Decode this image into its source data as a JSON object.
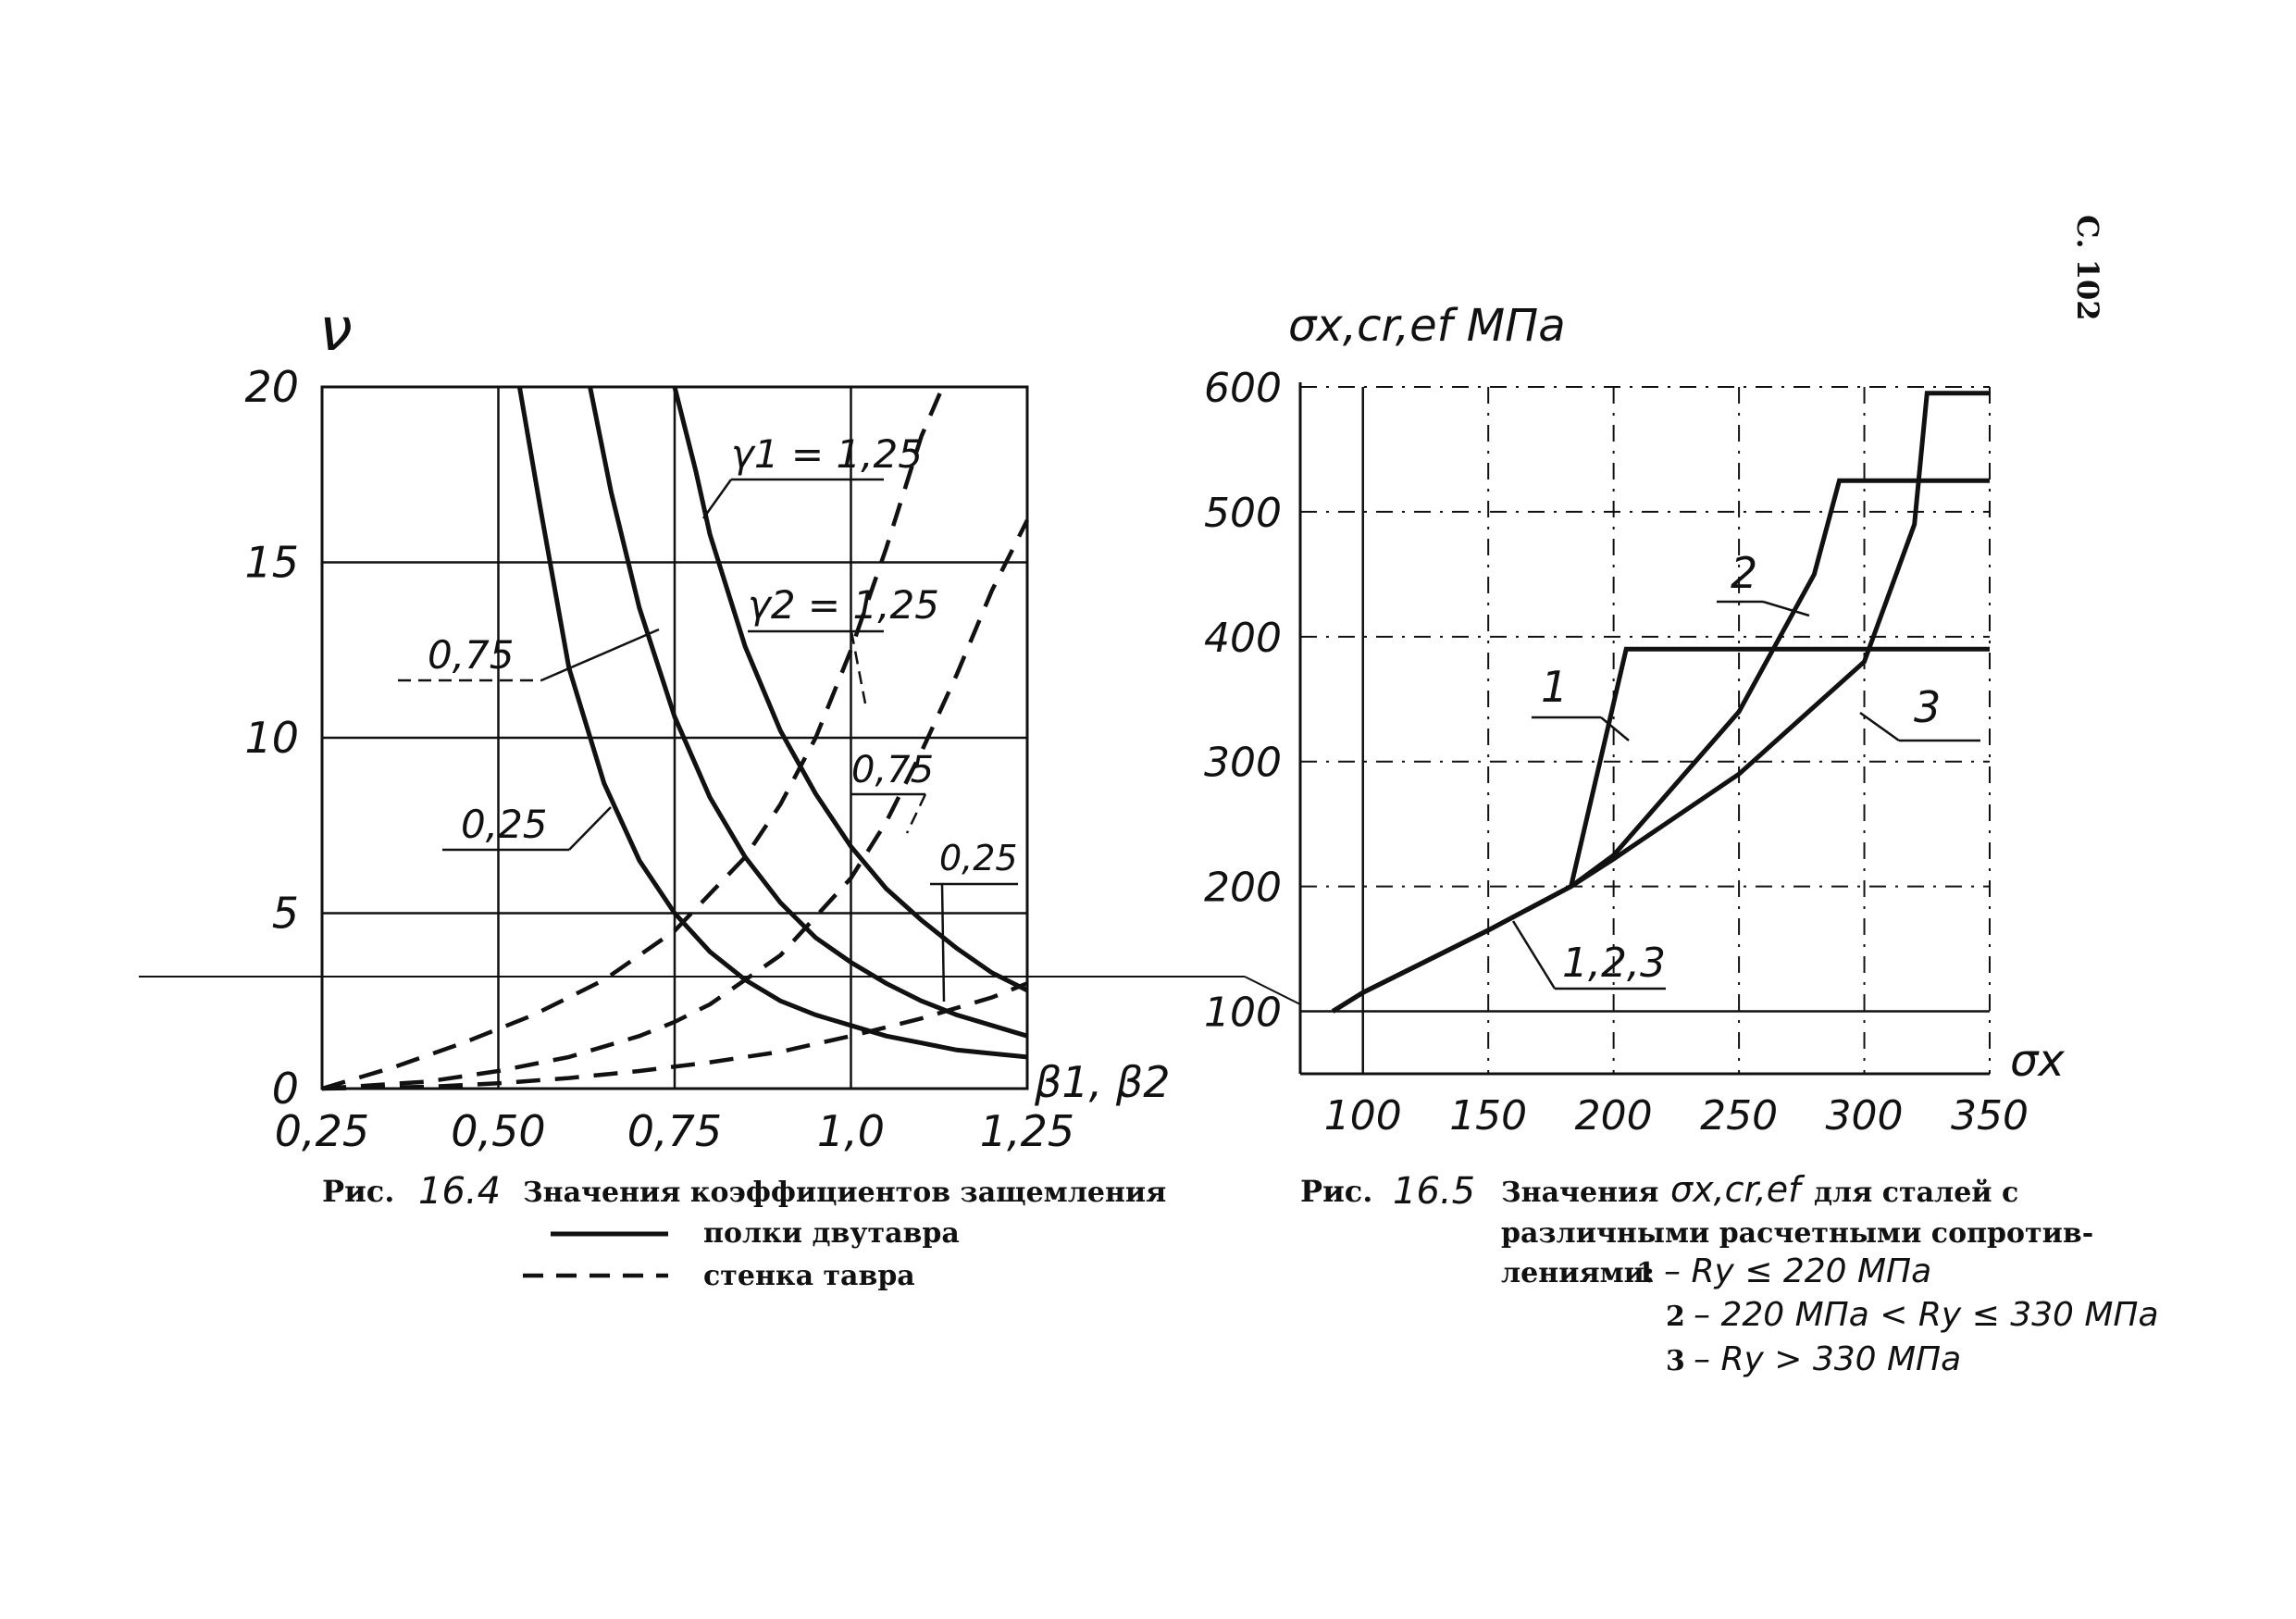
{
  "page_mark": "С. 102",
  "chart_data": [
    {
      "type": "line",
      "id": "fig_16_4",
      "ylabel": "ν",
      "xlabel": "β1, β2",
      "xlim": [
        0.25,
        1.25
      ],
      "ylim": [
        0,
        20
      ],
      "x_ticks": [
        0.25,
        0.5,
        0.75,
        1.0,
        1.25
      ],
      "x_tick_labels": [
        "0,25",
        "0,50",
        "0,75",
        "1,0",
        "1,25"
      ],
      "y_ticks": [
        0,
        5,
        10,
        15,
        20
      ],
      "y_tick_labels": [
        "0",
        "5",
        "10",
        "15",
        "20"
      ],
      "grid": true,
      "caption": {
        "prefix": "Рис.",
        "number": "16.4",
        "title": "Значения коэффициентов защемления",
        "legend": [
          {
            "style": "solid",
            "label": "полки двутавра"
          },
          {
            "style": "dashed",
            "label": "стенка тавра"
          }
        ]
      },
      "annotations": {
        "solid_g1": "γ1 = 1,25",
        "solid_075": "0,75",
        "solid_025": "0,25",
        "dash_g2": "γ2 = 1,25",
        "dash_075": "0,75",
        "dash_025": "0,25"
      },
      "series": [
        {
          "style": "solid",
          "label": "0,25",
          "x": [
            0.53,
            0.56,
            0.6,
            0.65,
            0.7,
            0.75,
            0.8,
            0.85,
            0.9,
            0.95,
            1.0,
            1.05,
            1.1,
            1.15,
            1.2,
            1.25
          ],
          "y": [
            20,
            16.5,
            12.0,
            8.7,
            6.5,
            5.0,
            3.9,
            3.1,
            2.5,
            2.1,
            1.8,
            1.5,
            1.3,
            1.1,
            1.0,
            0.9
          ]
        },
        {
          "style": "solid",
          "label": "0,75",
          "x": [
            0.63,
            0.66,
            0.7,
            0.75,
            0.8,
            0.85,
            0.9,
            0.95,
            1.0,
            1.05,
            1.1,
            1.15,
            1.2,
            1.25
          ],
          "y": [
            20,
            17.0,
            13.7,
            10.6,
            8.3,
            6.6,
            5.3,
            4.3,
            3.6,
            3.0,
            2.5,
            2.1,
            1.8,
            1.5
          ]
        },
        {
          "style": "solid",
          "label": "γ1 = 1,25",
          "x": [
            0.75,
            0.78,
            0.8,
            0.85,
            0.9,
            0.95,
            1.0,
            1.05,
            1.1,
            1.15,
            1.2,
            1.25
          ],
          "y": [
            20,
            17.6,
            15.8,
            12.6,
            10.2,
            8.4,
            6.9,
            5.7,
            4.8,
            4.0,
            3.3,
            2.8
          ]
        },
        {
          "style": "dashed",
          "label": "0,25",
          "x": [
            0.25,
            0.4,
            0.5,
            0.6,
            0.7,
            0.8,
            0.9,
            1.0,
            1.1,
            1.2,
            1.25
          ],
          "y": [
            0,
            0.05,
            0.15,
            0.3,
            0.5,
            0.75,
            1.05,
            1.5,
            2.0,
            2.6,
            3.0
          ]
        },
        {
          "style": "dashed",
          "label": "0,75",
          "x": [
            0.25,
            0.4,
            0.5,
            0.6,
            0.7,
            0.75,
            0.8,
            0.9,
            1.0,
            1.05,
            1.1,
            1.15,
            1.2,
            1.25
          ],
          "y": [
            0,
            0.2,
            0.5,
            0.9,
            1.5,
            1.9,
            2.4,
            3.8,
            6.0,
            7.6,
            9.6,
            11.8,
            14.2,
            16.2
          ]
        },
        {
          "style": "dashed",
          "label": "γ2 = 1,25",
          "x": [
            0.25,
            0.35,
            0.45,
            0.55,
            0.65,
            0.75,
            0.85,
            0.9,
            0.95,
            1.0,
            1.05,
            1.1,
            1.13
          ],
          "y": [
            0,
            0.6,
            1.3,
            2.1,
            3.1,
            4.5,
            6.6,
            8.1,
            10.0,
            12.5,
            15.4,
            18.6,
            20
          ]
        }
      ]
    },
    {
      "type": "line",
      "id": "fig_16_5",
      "ylabel": "σx,cr,ef МПа",
      "xlabel": "σx",
      "xlim": [
        75,
        350
      ],
      "ylim": [
        50,
        600
      ],
      "x_ticks": [
        100,
        150,
        200,
        250,
        300,
        350
      ],
      "x_tick_labels": [
        "100",
        "150",
        "200",
        "250",
        "300",
        "350"
      ],
      "y_ticks": [
        100,
        200,
        300,
        400,
        500,
        600
      ],
      "y_tick_labels": [
        "100",
        "200",
        "300",
        "400",
        "500",
        "600"
      ],
      "grid": true,
      "caption": {
        "prefix": "Рис.",
        "number": "16.5",
        "title_before": "Значения",
        "title_symbol": "σx,cr,ef",
        "title_after": "для сталей с",
        "line2": "различными расчетными сопротив-",
        "line3_prefix": "лениями:",
        "items": [
          {
            "num": "1",
            "text": "– Ry ≤ 220 МПа"
          },
          {
            "num": "2",
            "text": "– 220 МПа < Ry ≤ 330 МПа"
          },
          {
            "num": "3",
            "text": "– Ry > 330 МПа"
          }
        ]
      },
      "annotations": {
        "c1": "1",
        "c2": "2",
        "c3": "3",
        "c123": "1,2,3"
      },
      "series": [
        {
          "name": "1",
          "x": [
            88,
            100,
            150,
            183,
            205,
            350
          ],
          "y": [
            100,
            115,
            165,
            200,
            390,
            390
          ]
        },
        {
          "name": "2",
          "x": [
            88,
            100,
            150,
            183,
            200,
            250,
            280,
            290,
            350
          ],
          "y": [
            100,
            115,
            165,
            200,
            225,
            340,
            450,
            525,
            525
          ]
        },
        {
          "name": "3",
          "x": [
            88,
            100,
            150,
            183,
            200,
            250,
            300,
            320,
            325,
            350
          ],
          "y": [
            100,
            115,
            165,
            200,
            222,
            290,
            380,
            490,
            595,
            595
          ]
        }
      ]
    }
  ]
}
